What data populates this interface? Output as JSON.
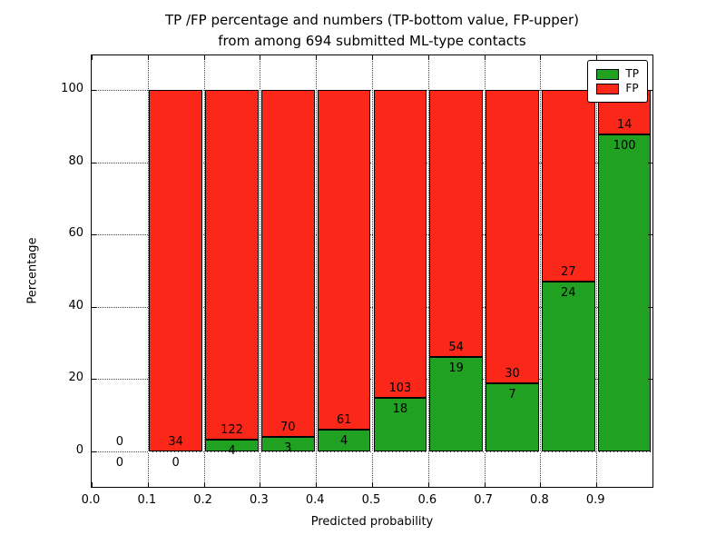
{
  "chart_data": {
    "type": "bar",
    "stacked": true,
    "title_line1": "TP /FP percentage and numbers (TP-bottom value, FP-upper)",
    "title_line2": "from among 694 submitted ML-type contacts",
    "xlabel": "Predicted probability",
    "ylabel": "Percentage",
    "total_contacts": 694,
    "xlim": [
      0.0,
      1.0
    ],
    "ylim": [
      -10,
      110
    ],
    "grid": "dotted",
    "x_tick_values": [
      0.0,
      0.1,
      0.2,
      0.3,
      0.4,
      0.5,
      0.6,
      0.7,
      0.8,
      0.9
    ],
    "x_tick_labels": [
      "0.0",
      "0.1",
      "0.2",
      "0.3",
      "0.4",
      "0.5",
      "0.6",
      "0.7",
      "0.8",
      "0.9"
    ],
    "y_tick_values": [
      0,
      20,
      40,
      60,
      80,
      100
    ],
    "y_tick_labels": [
      "0",
      "20",
      "40",
      "60",
      "80",
      "100"
    ],
    "legend": {
      "position": "upper right",
      "entries": [
        {
          "label": "TP",
          "color": "#21a121"
        },
        {
          "label": "FP",
          "color": "#fb2819"
        }
      ]
    },
    "bins": [
      {
        "bin_start": 0.0,
        "bin_end": 0.1,
        "tp": 0,
        "fp": 0,
        "tp_pct": 0,
        "bar_total_pct": 0
      },
      {
        "bin_start": 0.1,
        "bin_end": 0.2,
        "tp": 0,
        "fp": 34,
        "tp_pct": 0,
        "bar_total_pct": 100
      },
      {
        "bin_start": 0.2,
        "bin_end": 0.3,
        "tp": 4,
        "fp": 122,
        "tp_pct": 3.17,
        "bar_total_pct": 100
      },
      {
        "bin_start": 0.3,
        "bin_end": 0.4,
        "tp": 3,
        "fp": 70,
        "tp_pct": 4.11,
        "bar_total_pct": 100
      },
      {
        "bin_start": 0.4,
        "bin_end": 0.5,
        "tp": 4,
        "fp": 61,
        "tp_pct": 6.15,
        "bar_total_pct": 100
      },
      {
        "bin_start": 0.5,
        "bin_end": 0.6,
        "tp": 18,
        "fp": 103,
        "tp_pct": 14.88,
        "bar_total_pct": 100
      },
      {
        "bin_start": 0.6,
        "bin_end": 0.7,
        "tp": 19,
        "fp": 54,
        "tp_pct": 26.03,
        "bar_total_pct": 100
      },
      {
        "bin_start": 0.7,
        "bin_end": 0.8,
        "tp": 7,
        "fp": 30,
        "tp_pct": 18.92,
        "bar_total_pct": 100
      },
      {
        "bin_start": 0.8,
        "bin_end": 0.9,
        "tp": 24,
        "fp": 27,
        "tp_pct": 47.06,
        "bar_total_pct": 100
      },
      {
        "bin_start": 0.9,
        "bin_end": 1.0,
        "tp": 100,
        "fp": 14,
        "tp_pct": 87.72,
        "bar_total_pct": 100
      }
    ]
  }
}
